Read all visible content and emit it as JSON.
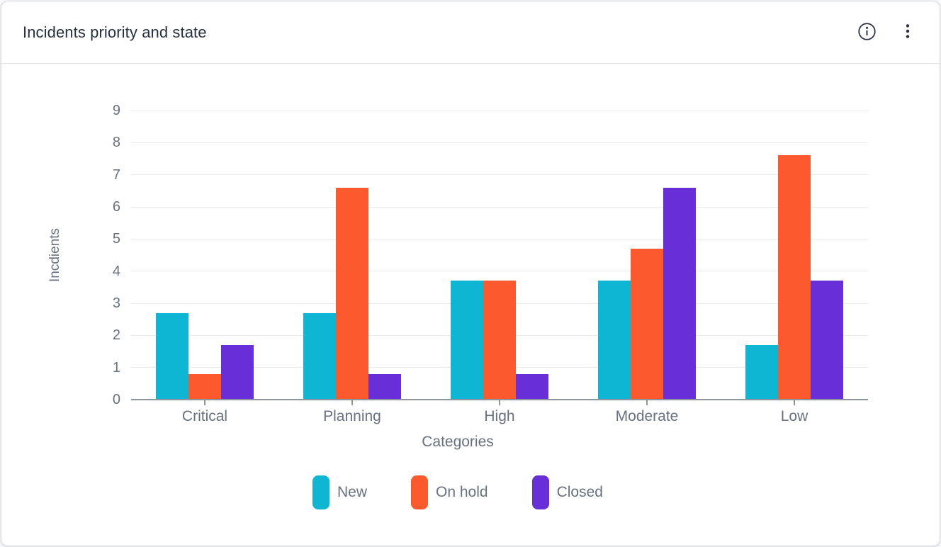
{
  "card": {
    "title": "Incidents priority and state",
    "actions": {
      "info_icon": "info-circle",
      "menu_icon": "vertical-ellipsis"
    }
  },
  "chart_data": {
    "type": "bar",
    "title": "Incidents priority and state",
    "categories": [
      "Critical",
      "Planning",
      "High",
      "Moderate",
      "Low"
    ],
    "series": [
      {
        "name": "New",
        "color": "#0fb6d4",
        "values": [
          2.7,
          2.7,
          3.7,
          3.7,
          1.7
        ]
      },
      {
        "name": "On hold",
        "color": "#fc5a2e",
        "values": [
          0.8,
          6.6,
          3.7,
          4.7,
          7.6
        ]
      },
      {
        "name": "Closed",
        "color": "#682ed7",
        "values": [
          1.7,
          0.8,
          0.8,
          6.6,
          3.7
        ]
      }
    ],
    "xlabel": "Categories",
    "ylabel": "Incdients",
    "ylim": [
      0,
      9
    ],
    "yticks": [
      0,
      1,
      2,
      3,
      4,
      5,
      6,
      7,
      8,
      9
    ],
    "grid": true,
    "legend_position": "bottom",
    "text_color": "#67717f",
    "grid_color": "#e8eaee",
    "axis_color": "#8f959e"
  }
}
